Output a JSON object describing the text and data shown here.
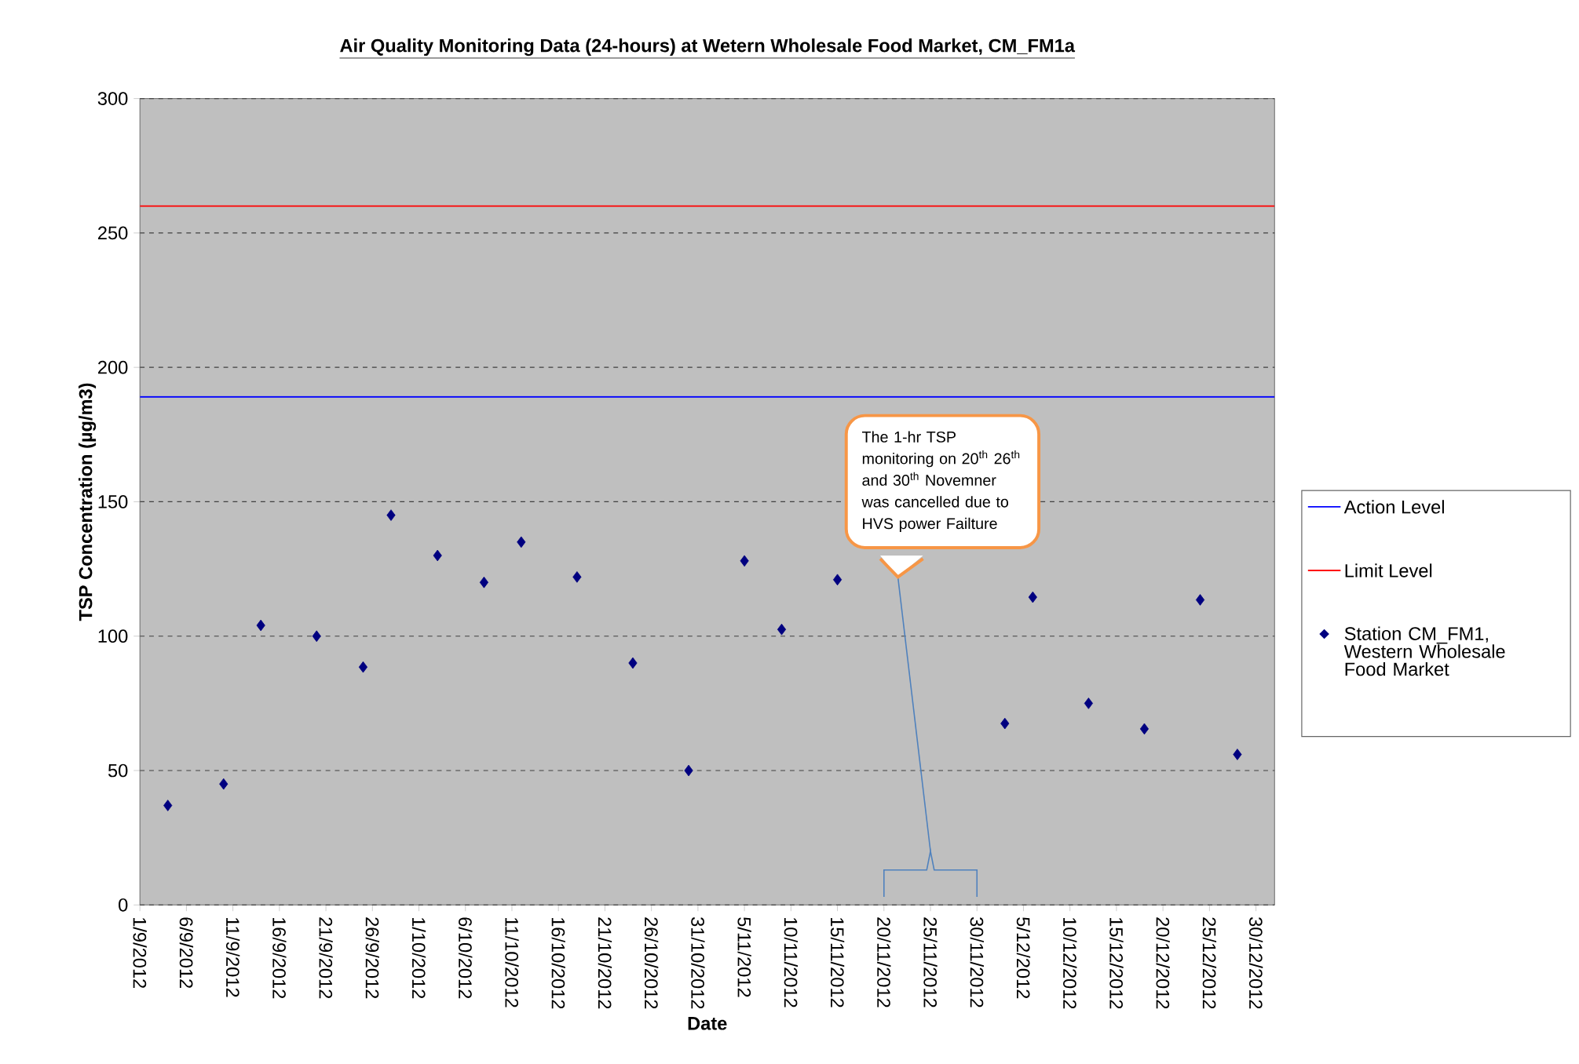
{
  "chart_data": {
    "type": "scatter",
    "title": "Air Quality Monitoring Data (24-hours) at Wetern Wholesale Food Market, CM_FM1a",
    "xlabel": "Date",
    "ylabel": "TSP Concentration (µg/m3)",
    "x": [
      "2012-09-04",
      "2012-09-10",
      "2012-09-14",
      "2012-09-20",
      "2012-09-25",
      "2012-09-28",
      "2012-10-03",
      "2012-10-08",
      "2012-10-12",
      "2012-10-18",
      "2012-10-24",
      "2012-10-30",
      "2012-11-05",
      "2012-11-09",
      "2012-11-15",
      "2012-12-03",
      "2012-12-06",
      "2012-12-12",
      "2012-12-18",
      "2012-12-24",
      "2012-12-28"
    ],
    "series": [
      {
        "name": "Station CM_FM1, Western Wholesale Food Market",
        "color": "#000080",
        "values": [
          37,
          45,
          104,
          100,
          88.5,
          145,
          130,
          120,
          135,
          122,
          90,
          50,
          128,
          102.5,
          121,
          67.5,
          114.5,
          75,
          65.5,
          113.5,
          56
        ]
      }
    ],
    "marker": "diamond",
    "xlim": [
      "2012-09-01",
      "2013-01-01"
    ],
    "xticks": [
      {
        "value": "2012-09-01",
        "label": "1/9/2012"
      },
      {
        "value": "2012-09-06",
        "label": "6/9/2012"
      },
      {
        "value": "2012-09-11",
        "label": "11/9/2012"
      },
      {
        "value": "2012-09-16",
        "label": "16/9/2012"
      },
      {
        "value": "2012-09-21",
        "label": "21/9/2012"
      },
      {
        "value": "2012-09-26",
        "label": "26/9/2012"
      },
      {
        "value": "2012-10-01",
        "label": "1/10/2012"
      },
      {
        "value": "2012-10-06",
        "label": "6/10/2012"
      },
      {
        "value": "2012-10-11",
        "label": "11/10/2012"
      },
      {
        "value": "2012-10-16",
        "label": "16/10/2012"
      },
      {
        "value": "2012-10-21",
        "label": "21/10/2012"
      },
      {
        "value": "2012-10-26",
        "label": "26/10/2012"
      },
      {
        "value": "2012-10-31",
        "label": "31/10/2012"
      },
      {
        "value": "2012-11-05",
        "label": "5/11/2012"
      },
      {
        "value": "2012-11-10",
        "label": "10/11/2012"
      },
      {
        "value": "2012-11-15",
        "label": "15/11/2012"
      },
      {
        "value": "2012-11-20",
        "label": "20/11/2012"
      },
      {
        "value": "2012-11-25",
        "label": "25/11/2012"
      },
      {
        "value": "2012-11-30",
        "label": "30/11/2012"
      },
      {
        "value": "2012-12-05",
        "label": "5/12/2012"
      },
      {
        "value": "2012-12-10",
        "label": "10/12/2012"
      },
      {
        "value": "2012-12-15",
        "label": "15/12/2012"
      },
      {
        "value": "2012-12-20",
        "label": "20/12/2012"
      },
      {
        "value": "2012-12-25",
        "label": "25/12/2012"
      },
      {
        "value": "2012-12-30",
        "label": "30/12/2012"
      }
    ],
    "ylim": [
      0,
      300
    ],
    "yticks": [
      0,
      50,
      100,
      150,
      200,
      250,
      300
    ],
    "grid": "y",
    "legend": "right",
    "ref_lines": [
      {
        "axis": "y",
        "value": 189,
        "label": "Action Level",
        "color": "#0000ff"
      },
      {
        "axis": "y",
        "value": 260,
        "label": "Limit Level",
        "color": "#ff0000"
      }
    ],
    "annotations": [
      "The 1-hr TSP monitoring on 20$^{th}$ 26$^{th}$ and 30$^{th}$ Novemner was cancelled due to HVS power Failture"
    ]
  }
}
